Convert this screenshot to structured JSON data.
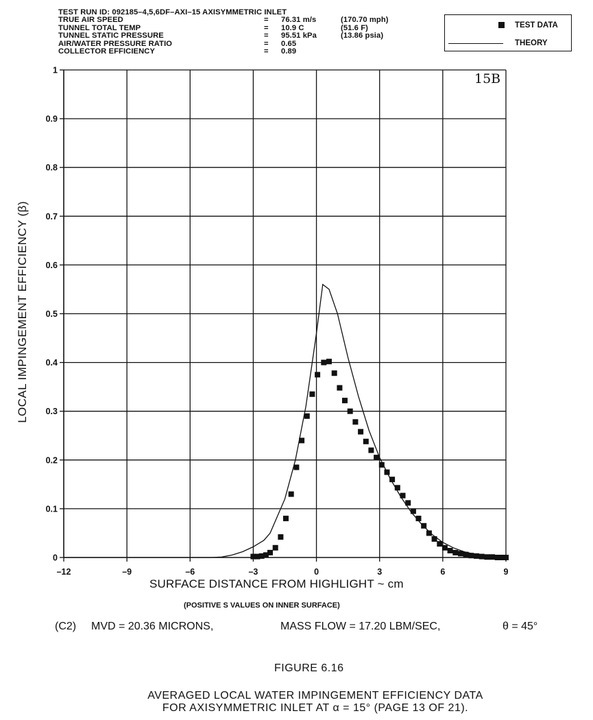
{
  "header": {
    "rows": [
      {
        "label": "TEST RUN ID:  092185–4,5,6DF–AXI–15  AXISYMMETRIC INLET",
        "eq": "",
        "value": "",
        "alt": ""
      },
      {
        "label": "TRUE AIR SPEED",
        "eq": "=",
        "value": "76.31 m/s",
        "alt": "(170.70 mph)"
      },
      {
        "label": "TUNNEL TOTAL TEMP",
        "eq": "=",
        "value": "10.9 C",
        "alt": "(51.6 F)"
      },
      {
        "label": "TUNNEL STATIC PRESSURE",
        "eq": "=",
        "value": "95.51 kPa",
        "alt": "(13.86 psia)"
      },
      {
        "label": "AIR/WATER PRESSURE RATIO",
        "eq": "=",
        "value": "0.65",
        "alt": ""
      },
      {
        "label": "COLLECTOR EFFICIENCY",
        "eq": "=",
        "value": "0.89",
        "alt": ""
      }
    ]
  },
  "legend": {
    "test_data": "TEST DATA",
    "theory": "THEORY"
  },
  "panel_label": "15B",
  "footer": {
    "x_note": "(POSITIVE S VALUES ON INNER SURFACE)",
    "case": "(C2)",
    "mvd": "MVD = 20.36 MICRONS,",
    "mass_flow": "MASS FLOW = 17.20 LBM/SEC,",
    "theta": "θ  =  45°",
    "figure_number": "FIGURE 6.16",
    "caption_line1": "AVERAGED LOCAL WATER IMPINGEMENT EFFICIENCY DATA",
    "caption_line2": "FOR AXISYMMETRIC INLET AT α = 15° (PAGE 13 OF 21)."
  },
  "chart_data": {
    "type": "scatter",
    "xlabel": "SURFACE DISTANCE FROM HIGHLIGHT ~ cm",
    "ylabel": "LOCAL IMPINGEMENT EFFICIENCY (β)",
    "xlim": [
      -12,
      9
    ],
    "ylim": [
      0,
      1
    ],
    "x_ticks": [
      -12,
      -9,
      -6,
      -3,
      0,
      3,
      6,
      9
    ],
    "x_tick_labels": [
      "–12",
      "–9",
      "–6",
      "–3",
      "0",
      "3",
      "6",
      "9"
    ],
    "y_ticks": [
      0,
      0.1,
      0.2,
      0.3,
      0.4,
      0.5,
      0.6,
      0.7,
      0.8,
      0.9,
      1
    ],
    "y_tick_labels": [
      "0",
      "0.1",
      "0.2",
      "0.3",
      "0.4",
      "0.5",
      "0.6",
      "0.7",
      "0.8",
      "0.9",
      "1"
    ],
    "grid": true,
    "legend_position": "top-right outside",
    "series": [
      {
        "name": "TEST DATA",
        "type": "scatter",
        "marker": "square",
        "x": [
          -3.0,
          -2.8,
          -2.6,
          -2.4,
          -2.2,
          -1.95,
          -1.7,
          -1.45,
          -1.2,
          -0.95,
          -0.7,
          -0.45,
          -0.2,
          0.05,
          0.35,
          0.6,
          0.85,
          1.1,
          1.35,
          1.6,
          1.85,
          2.1,
          2.35,
          2.6,
          2.85,
          3.1,
          3.35,
          3.6,
          3.85,
          4.1,
          4.35,
          4.6,
          4.85,
          5.1,
          5.35,
          5.6,
          5.85,
          6.1,
          6.35,
          6.6,
          6.85,
          7.1,
          7.35,
          7.6,
          7.85,
          8.1,
          8.35,
          8.6,
          8.85,
          9.0
        ],
        "y": [
          0.002,
          0.002,
          0.003,
          0.005,
          0.01,
          0.02,
          0.042,
          0.08,
          0.13,
          0.185,
          0.24,
          0.29,
          0.335,
          0.375,
          0.4,
          0.402,
          0.378,
          0.348,
          0.322,
          0.3,
          0.278,
          0.258,
          0.238,
          0.22,
          0.205,
          0.19,
          0.175,
          0.16,
          0.143,
          0.127,
          0.112,
          0.095,
          0.08,
          0.065,
          0.05,
          0.038,
          0.028,
          0.02,
          0.014,
          0.01,
          0.008,
          0.006,
          0.004,
          0.003,
          0.002,
          0.001,
          0.001,
          0.0,
          0.0,
          0.0
        ]
      },
      {
        "name": "THEORY",
        "type": "line",
        "x": [
          -12,
          -5.0,
          -4.5,
          -4.0,
          -3.5,
          -3.0,
          -2.5,
          -2.2,
          -1.5,
          -1.0,
          -0.5,
          0.0,
          0.3,
          0.6,
          1.0,
          1.5,
          2.0,
          2.5,
          3.0,
          3.5,
          4.0,
          4.5,
          5.0,
          5.5,
          6.0,
          6.5,
          7.0,
          7.5,
          8.0,
          8.5,
          9.0
        ],
        "y": [
          0,
          0,
          0.001,
          0.005,
          0.012,
          0.022,
          0.035,
          0.05,
          0.12,
          0.2,
          0.31,
          0.46,
          0.56,
          0.55,
          0.5,
          0.41,
          0.33,
          0.26,
          0.205,
          0.162,
          0.125,
          0.093,
          0.068,
          0.047,
          0.031,
          0.02,
          0.012,
          0.007,
          0.004,
          0.002,
          0.0
        ]
      }
    ]
  }
}
